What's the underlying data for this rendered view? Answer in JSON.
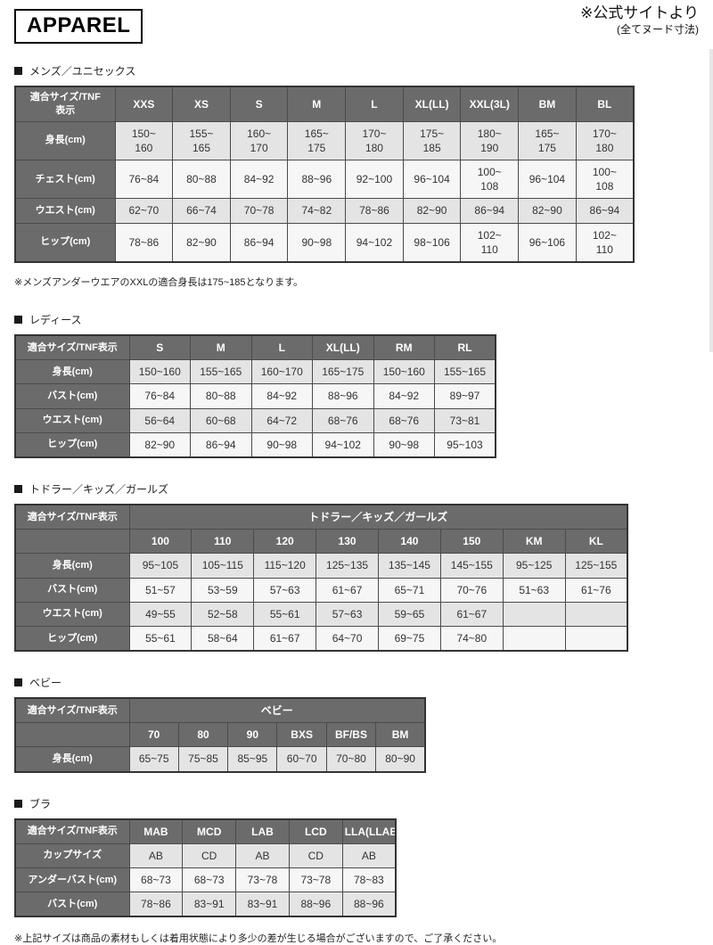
{
  "page": {
    "title": "APPAREL",
    "source_note": "※公式サイトより",
    "source_note_sub": "(全てヌード寸法)",
    "footer_note": "※上記サイズは商品の素材もしくは着用状態により多少の差が生じる場合がございますので、ご了承ください。"
  },
  "colors": {
    "header_bg": "#6b6b6b",
    "header_text": "#ffffff",
    "row_shade": "#e4e4e4",
    "row_plain": "#f6f6f6",
    "border": "#4b4b4b",
    "title_border": "#000000"
  },
  "tables": [
    {
      "name": "mens",
      "section_title": "メンズ／ユニセックス",
      "corner_label": "適合サイズ/TNF\n表示",
      "group_label": null,
      "columns": [
        "XXS",
        "XS",
        "S",
        "M",
        "L",
        "XL(LL)",
        "XXL(3L)",
        "BM",
        "BL"
      ],
      "rows": [
        {
          "label": "身長(cm)",
          "values": [
            "150~\n160",
            "155~\n165",
            "160~\n170",
            "165~\n175",
            "170~\n180",
            "175~\n185",
            "180~\n190",
            "165~\n175",
            "170~\n180"
          ]
        },
        {
          "label": "チェスト(cm)",
          "values": [
            "76~84",
            "80~88",
            "84~92",
            "88~96",
            "92~100",
            "96~104",
            "100~\n108",
            "96~104",
            "100~\n108"
          ]
        },
        {
          "label": "ウエスト(cm)",
          "values": [
            "62~70",
            "66~74",
            "70~78",
            "74~82",
            "78~86",
            "82~90",
            "86~94",
            "82~90",
            "86~94"
          ]
        },
        {
          "label": "ヒップ(cm)",
          "values": [
            "78~86",
            "82~90",
            "86~94",
            "90~98",
            "94~102",
            "98~106",
            "102~\n110",
            "96~106",
            "102~\n110"
          ]
        }
      ],
      "note": "※メンズアンダーウエアのXXLの適合身長は175~185となります。"
    },
    {
      "name": "ladies",
      "section_title": "レディース",
      "corner_label": "適合サイズ/TNF表示",
      "group_label": null,
      "columns": [
        "S",
        "M",
        "L",
        "XL(LL)",
        "RM",
        "RL"
      ],
      "rows": [
        {
          "label": "身長(cm)",
          "values": [
            "150~160",
            "155~165",
            "160~170",
            "165~175",
            "150~160",
            "155~165"
          ]
        },
        {
          "label": "バスト(cm)",
          "values": [
            "76~84",
            "80~88",
            "84~92",
            "88~96",
            "84~92",
            "89~97"
          ]
        },
        {
          "label": "ウエスト(cm)",
          "values": [
            "56~64",
            "60~68",
            "64~72",
            "68~76",
            "68~76",
            "73~81"
          ]
        },
        {
          "label": "ヒップ(cm)",
          "values": [
            "82~90",
            "86~94",
            "90~98",
            "94~102",
            "90~98",
            "95~103"
          ]
        }
      ],
      "note": null
    },
    {
      "name": "kids",
      "section_title": "トドラー／キッズ／ガールズ",
      "corner_label": "適合サイズ/TNF表示",
      "group_label": "トドラー／キッズ／ガールズ",
      "columns": [
        "100",
        "110",
        "120",
        "130",
        "140",
        "150",
        "KM",
        "KL"
      ],
      "rows": [
        {
          "label": "身長(cm)",
          "values": [
            "95~105",
            "105~115",
            "115~120",
            "125~135",
            "135~145",
            "145~155",
            "95~125",
            "125~155"
          ]
        },
        {
          "label": "バスト(cm)",
          "values": [
            "51~57",
            "53~59",
            "57~63",
            "61~67",
            "65~71",
            "70~76",
            "51~63",
            "61~76"
          ]
        },
        {
          "label": "ウエスト(cm)",
          "values": [
            "49~55",
            "52~58",
            "55~61",
            "57~63",
            "59~65",
            "61~67",
            "",
            ""
          ]
        },
        {
          "label": "ヒップ(cm)",
          "values": [
            "55~61",
            "58~64",
            "61~67",
            "64~70",
            "69~75",
            "74~80",
            "",
            ""
          ]
        }
      ],
      "note": null
    },
    {
      "name": "baby",
      "section_title": "ベビー",
      "corner_label": "適合サイズ/TNF表示",
      "group_label": "ベビー",
      "columns": [
        "70",
        "80",
        "90",
        "BXS",
        "BF/BS",
        "BM"
      ],
      "rows": [
        {
          "label": "身長(cm)",
          "values": [
            "65~75",
            "75~85",
            "85~95",
            "60~70",
            "70~80",
            "80~90"
          ]
        }
      ],
      "note": null
    },
    {
      "name": "bra",
      "section_title": "ブラ",
      "corner_label": "適合サイズ/TNF表示",
      "group_label": null,
      "columns": [
        "MAB",
        "MCD",
        "LAB",
        "LCD",
        "LLA(LLAB)"
      ],
      "rows": [
        {
          "label": "カップサイズ",
          "values": [
            "AB",
            "CD",
            "AB",
            "CD",
            "AB"
          ]
        },
        {
          "label": "アンダーバスト(cm)",
          "values": [
            "68~73",
            "68~73",
            "73~78",
            "73~78",
            "78~83"
          ]
        },
        {
          "label": "バスト(cm)",
          "values": [
            "78~86",
            "83~91",
            "83~91",
            "88~96",
            "88~96"
          ]
        }
      ],
      "note": null
    }
  ]
}
